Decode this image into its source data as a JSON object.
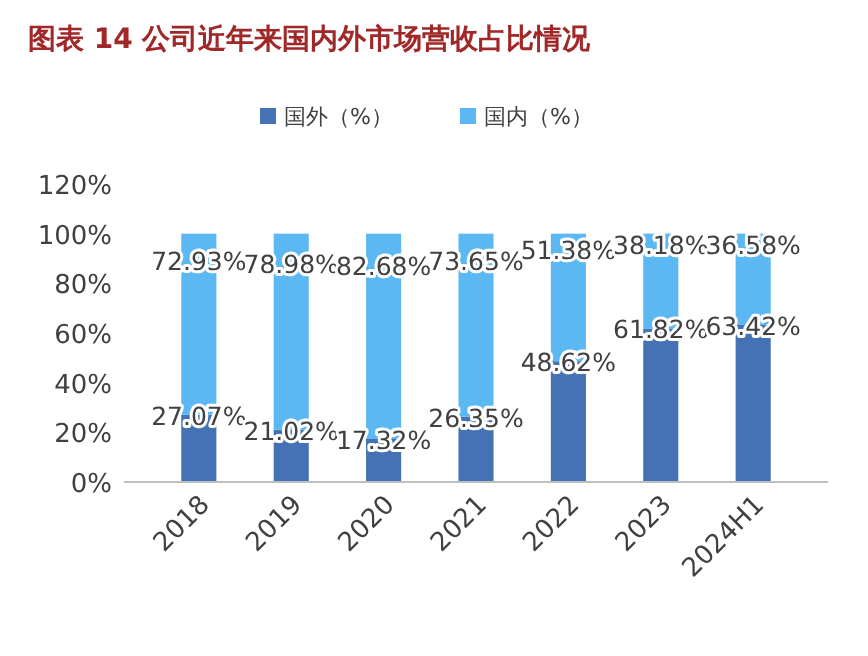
{
  "chart_data": {
    "type": "bar",
    "title": "图表 14 公司近年来国内外市场营收占比情况",
    "stacked": true,
    "legend": "top",
    "categories": [
      "2018",
      "2019",
      "2020",
      "2021",
      "2022",
      "2023",
      "2024H1"
    ],
    "series": [
      {
        "name": "国外（%）",
        "color": "#4472b4",
        "values": [
          27.07,
          21.02,
          17.32,
          26.35,
          48.62,
          61.82,
          63.42
        ],
        "value_labels": [
          "27.07%",
          "21.02%",
          "17.32%",
          "26.35%",
          "48.62%",
          "61.82%",
          "63.42%"
        ]
      },
      {
        "name": "国内（%）",
        "color": "#5cb8f2",
        "values": [
          72.93,
          78.98,
          82.68,
          73.65,
          51.38,
          38.18,
          36.58
        ],
        "value_labels": [
          "72.93%",
          "78.98%",
          "82.68%",
          "73.65%",
          "51.38%",
          "38.18%",
          "36.58%"
        ]
      }
    ],
    "ylim": [
      0,
      120
    ],
    "yticks": [
      {
        "value": 0,
        "label": "0%"
      },
      {
        "value": 20,
        "label": "20%"
      },
      {
        "value": 40,
        "label": "40%"
      },
      {
        "value": 60,
        "label": "60%"
      },
      {
        "value": 80,
        "label": "80%"
      },
      {
        "value": 100,
        "label": "100%"
      },
      {
        "value": 120,
        "label": "120%"
      }
    ]
  }
}
